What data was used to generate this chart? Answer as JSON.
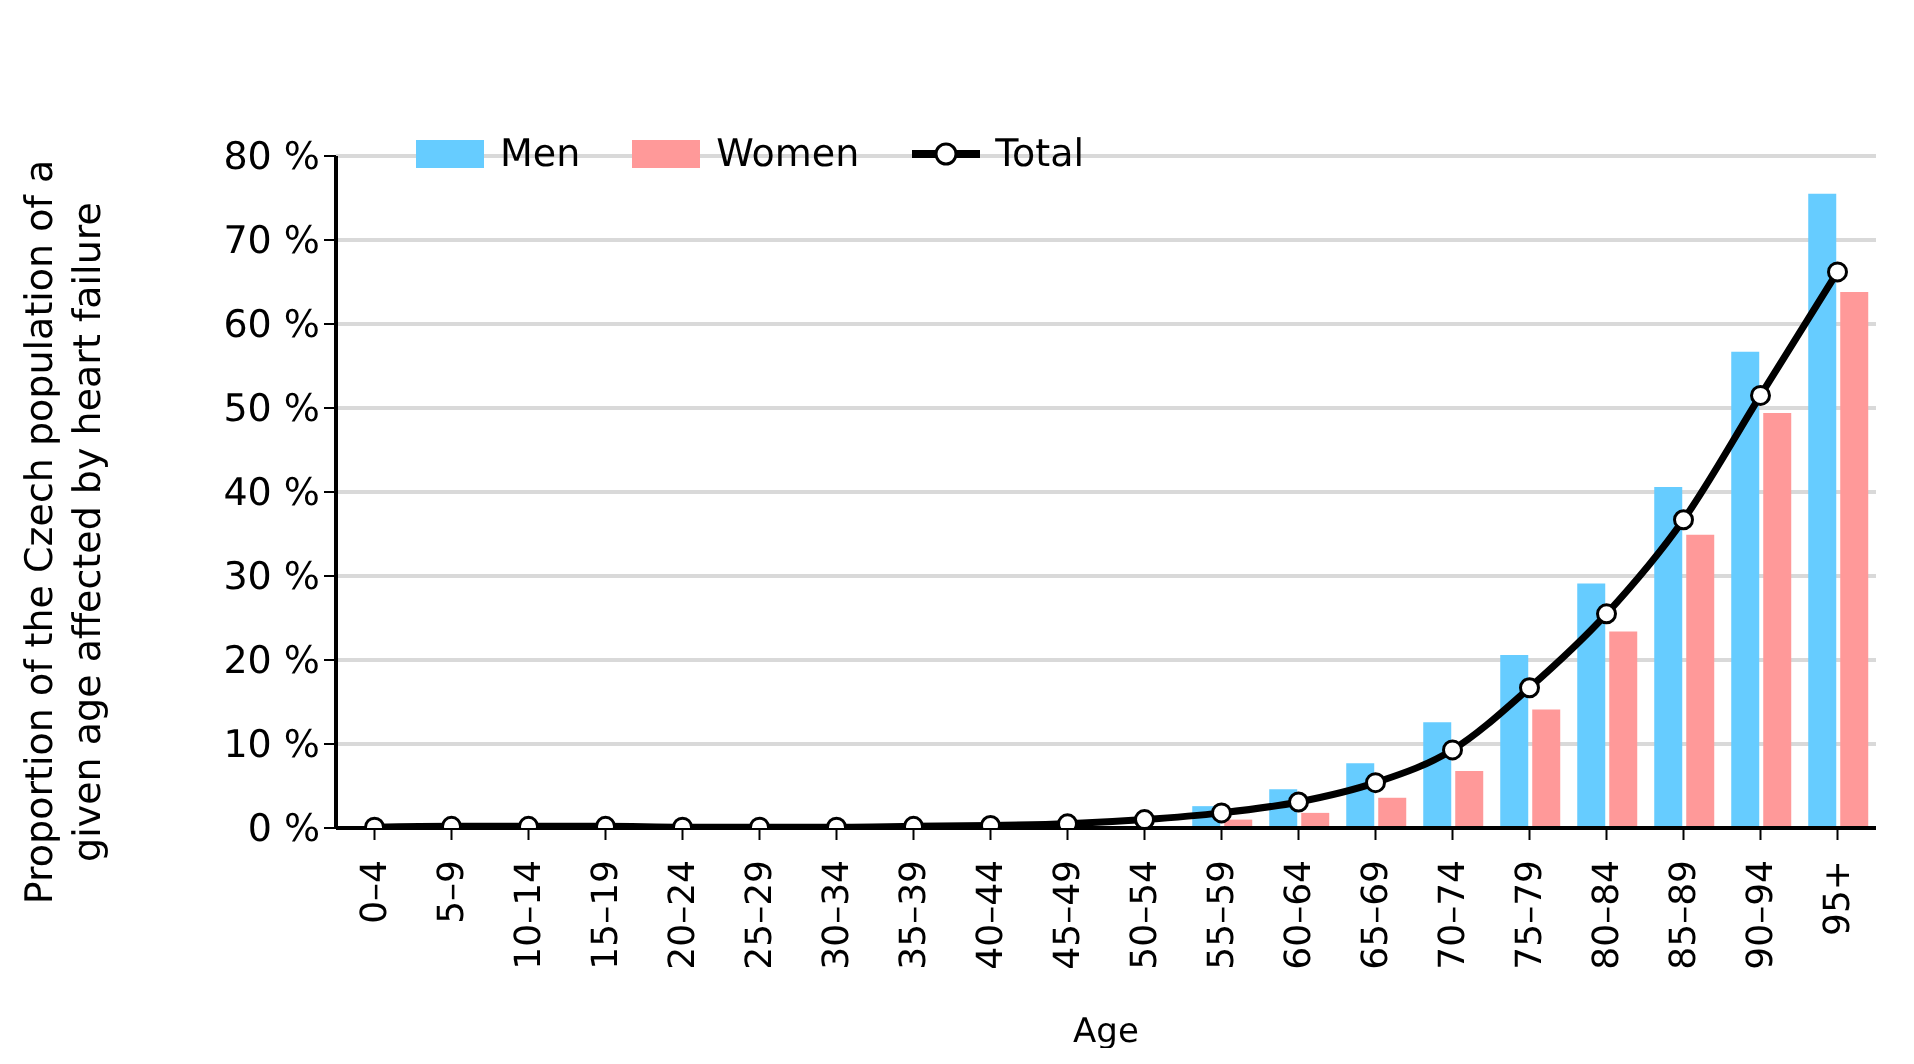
{
  "chart_data": {
    "type": "bar",
    "xlabel": "Age",
    "ylabel": "Proportion of the Czech population of a given age affected by heart failure",
    "categories": [
      "0–4",
      "5–9",
      "10–14",
      "15–19",
      "20–24",
      "25–29",
      "30–34",
      "35–39",
      "40–44",
      "45–49",
      "50–54",
      "55–59",
      "60–64",
      "65–69",
      "70–74",
      "75–79",
      "80–84",
      "85–89",
      "90–94",
      "95+"
    ],
    "series": [
      {
        "name": "Men",
        "color": "#66ccff",
        "values": [
          null,
          null,
          null,
          null,
          null,
          null,
          null,
          null,
          null,
          null,
          null,
          2.6,
          4.6,
          7.7,
          12.6,
          20.6,
          29.1,
          40.6,
          56.7,
          75.5
        ]
      },
      {
        "name": "Women",
        "color": "#ff9999",
        "values": [
          null,
          null,
          null,
          null,
          null,
          null,
          null,
          null,
          null,
          null,
          null,
          1.0,
          1.8,
          3.6,
          6.8,
          14.1,
          23.4,
          34.9,
          49.4,
          63.8
        ]
      },
      {
        "name": "Total",
        "type": "line",
        "color": "#000000",
        "values": [
          0.1,
          0.2,
          0.2,
          0.2,
          0.1,
          0.1,
          0.1,
          0.2,
          0.3,
          0.5,
          1.0,
          1.8,
          3.1,
          5.4,
          9.3,
          16.7,
          25.5,
          36.7,
          51.5,
          66.2
        ]
      }
    ],
    "ylim": [
      0,
      80
    ],
    "yticks": [
      {
        "value": 0,
        "label": "0 %"
      },
      {
        "value": 10,
        "label": "10 %"
      },
      {
        "value": 20,
        "label": "20 %"
      },
      {
        "value": 30,
        "label": "30 %"
      },
      {
        "value": 40,
        "label": "40 %"
      },
      {
        "value": 50,
        "label": "50 %"
      },
      {
        "value": 60,
        "label": "60 %"
      },
      {
        "value": 70,
        "label": "70 %"
      },
      {
        "value": 80,
        "label": "80 %"
      }
    ],
    "grid": "y",
    "legend": "top left",
    "marker": "circle",
    "line_style": "solid"
  }
}
